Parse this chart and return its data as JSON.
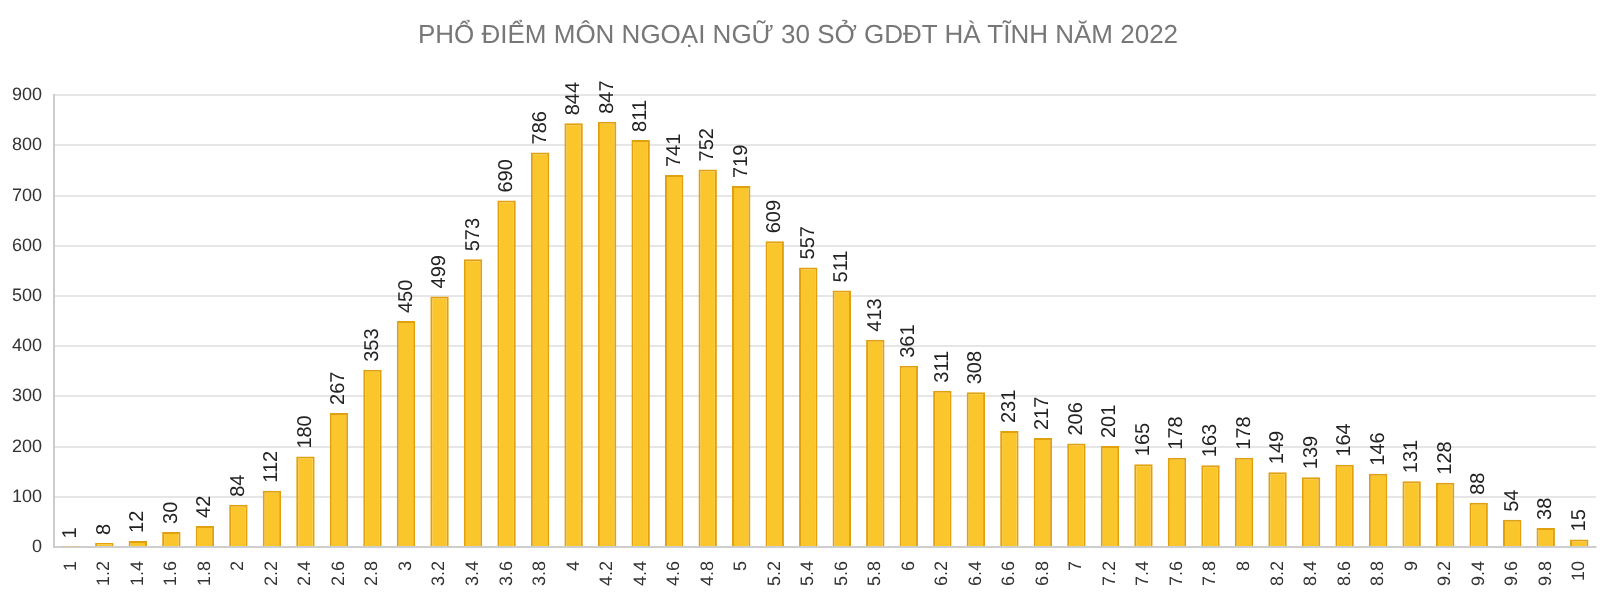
{
  "chart_data": {
    "type": "bar",
    "title": "PHỔ ĐIỂM MÔN NGOẠI NGỮ 30 SỞ GDĐT HÀ TĨNH NĂM 2022",
    "categories": [
      "1",
      "1.2",
      "1.4",
      "1.6",
      "1.8",
      "2",
      "2.2",
      "2.4",
      "2.6",
      "2.8",
      "3",
      "3.2",
      "3.4",
      "3.6",
      "3.8",
      "4",
      "4.2",
      "4.4",
      "4.6",
      "4.8",
      "5",
      "5.2",
      "5.4",
      "5.6",
      "5.8",
      "6",
      "6.2",
      "6.4",
      "6.6",
      "6.8",
      "7",
      "7.2",
      "7.4",
      "7.6",
      "7.8",
      "8",
      "8.2",
      "8.4",
      "8.6",
      "8.8",
      "9",
      "9.2",
      "9.4",
      "9.6",
      "9.8",
      "10"
    ],
    "values": [
      1,
      8,
      12,
      30,
      42,
      84,
      112,
      180,
      267,
      353,
      450,
      499,
      573,
      690,
      786,
      844,
      847,
      811,
      741,
      752,
      719,
      609,
      557,
      511,
      413,
      361,
      311,
      308,
      231,
      217,
      206,
      201,
      165,
      178,
      163,
      178,
      149,
      139,
      164,
      146,
      131,
      128,
      88,
      54,
      38,
      15
    ],
    "color": "#fbc52c",
    "ylim": [
      0,
      900
    ],
    "yticks": [
      0,
      100,
      200,
      300,
      400,
      500,
      600,
      700,
      800,
      900
    ],
    "grid": "y",
    "data_labels": true
  }
}
